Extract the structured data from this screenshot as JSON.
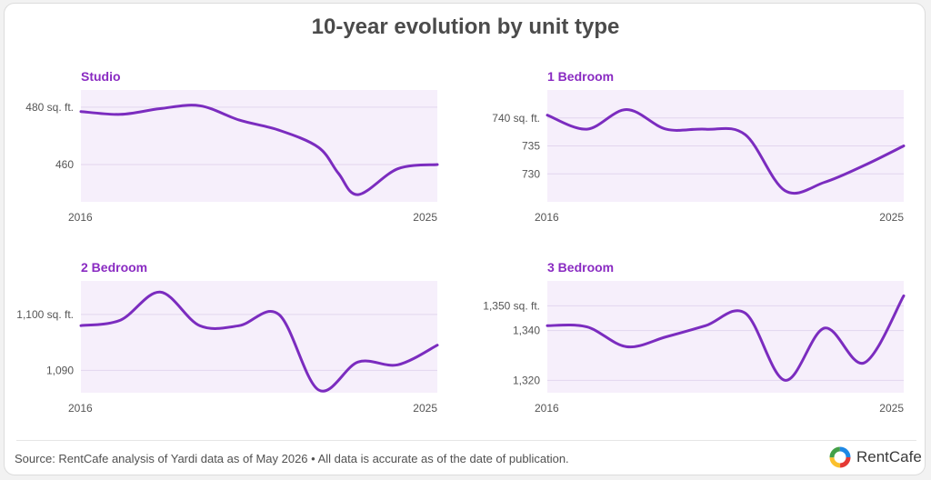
{
  "title": "10-year evolution by unit type",
  "footer": {
    "source": "Source: RentCafe analysis of Yardi data as of May 2026 • All data is accurate as of the date of publication.",
    "brand": "RentCafe"
  },
  "colors": {
    "line": "#7b2cbf",
    "plot_bg": "#f6effb",
    "panel_title": "#8a2bc2",
    "grid": "#e2d6ee",
    "tick_text": "#555555"
  },
  "chart_data": [
    {
      "type": "line",
      "title": "Studio",
      "x": [
        2016,
        2017,
        2018,
        2019,
        2020,
        2021,
        2022,
        2023,
        2024,
        2025
      ],
      "xticks": [
        "2016",
        "2025"
      ],
      "ylim": [
        447,
        486
      ],
      "yticks": [
        {
          "value": 480,
          "label": "480 sq. ft."
        },
        {
          "value": 460,
          "label": "460"
        }
      ],
      "points": [
        [
          2016,
          478.5
        ],
        [
          2017,
          477.5
        ],
        [
          2018,
          479.5
        ],
        [
          2019,
          480.5
        ],
        [
          2020,
          475.5
        ],
        [
          2021,
          472
        ],
        [
          2022,
          466
        ],
        [
          2022.5,
          457
        ],
        [
          2023,
          449.5
        ],
        [
          2024,
          458.5
        ],
        [
          2025,
          460
        ]
      ]
    },
    {
      "type": "line",
      "title": "1 Bedroom",
      "x": [
        2016,
        2017,
        2018,
        2019,
        2020,
        2021,
        2022,
        2023,
        2024,
        2025
      ],
      "xticks": [
        "2016",
        "2025"
      ],
      "ylim": [
        725,
        745
      ],
      "yticks": [
        {
          "value": 740,
          "label": "740 sq. ft."
        },
        {
          "value": 735,
          "label": "735"
        },
        {
          "value": 730,
          "label": "730"
        }
      ],
      "points": [
        [
          2016,
          740.5
        ],
        [
          2017,
          738
        ],
        [
          2018,
          741.5
        ],
        [
          2019,
          738
        ],
        [
          2020,
          738
        ],
        [
          2021,
          737
        ],
        [
          2022,
          727
        ],
        [
          2023,
          728.5
        ],
        [
          2024,
          731.5
        ],
        [
          2025,
          735
        ]
      ]
    },
    {
      "type": "line",
      "title": "2 Bedroom",
      "x": [
        2016,
        2017,
        2018,
        2019,
        2020,
        2021,
        2022,
        2023,
        2024,
        2025
      ],
      "xticks": [
        "2016",
        "2025"
      ],
      "ylim": [
        1086,
        1106
      ],
      "yticks": [
        {
          "value": 1100,
          "label": "1,100 sq. ft."
        },
        {
          "value": 1090,
          "label": "1,090"
        }
      ],
      "points": [
        [
          2016,
          1098
        ],
        [
          2017,
          1099
        ],
        [
          2018,
          1104
        ],
        [
          2019,
          1098
        ],
        [
          2020,
          1098
        ],
        [
          2021,
          1100
        ],
        [
          2022,
          1086.5
        ],
        [
          2023,
          1091.5
        ],
        [
          2024,
          1091
        ],
        [
          2025,
          1094.5
        ]
      ]
    },
    {
      "type": "line",
      "title": "3 Bedroom",
      "x": [
        2016,
        2017,
        2018,
        2019,
        2020,
        2021,
        2022,
        2023,
        2024,
        2025
      ],
      "xticks": [
        "2016",
        "2025"
      ],
      "ylim": [
        1315,
        1360
      ],
      "yticks": [
        {
          "value": 1350,
          "label": "1,350 sq. ft."
        },
        {
          "value": 1340,
          "label": "1,340"
        },
        {
          "value": 1320,
          "label": "1,320"
        }
      ],
      "points": [
        [
          2016,
          1342
        ],
        [
          2017,
          1341.5
        ],
        [
          2018,
          1333.5
        ],
        [
          2019,
          1337.5
        ],
        [
          2020,
          1342
        ],
        [
          2021,
          1347
        ],
        [
          2022,
          1320
        ],
        [
          2023,
          1341
        ],
        [
          2024,
          1327
        ],
        [
          2025,
          1354
        ]
      ]
    }
  ]
}
